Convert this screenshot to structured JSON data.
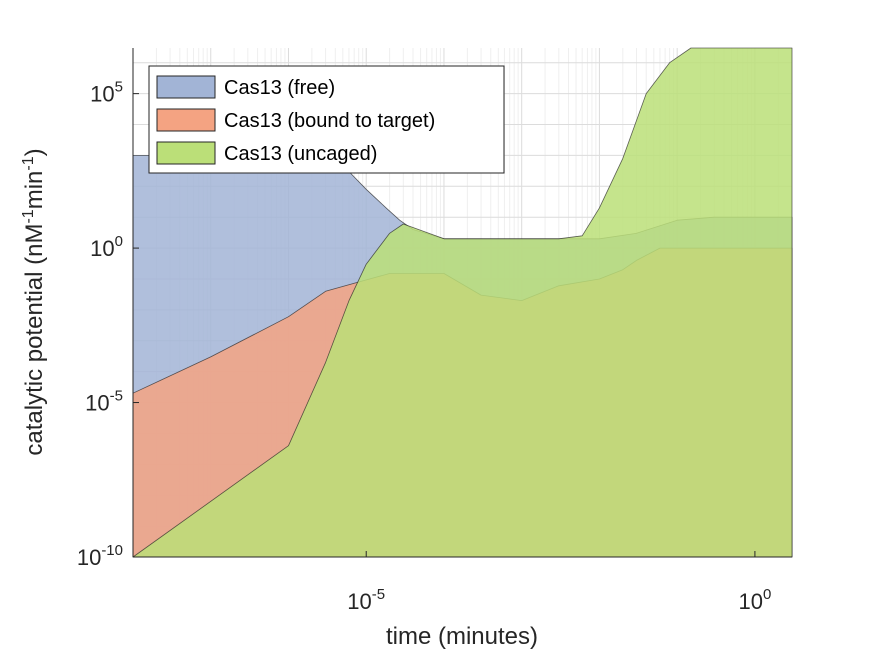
{
  "chart_data": {
    "type": "area",
    "title": "",
    "xlabel": "time (minutes)",
    "ylabel": {
      "prefix": "catalytic potential (nM",
      "sup1": "-1",
      "mid": "min",
      "sup2": "-1",
      "suffix": ")"
    },
    "xscale": "log",
    "yscale": "log",
    "xlim": [
      1e-08,
      3
    ],
    "ylim": [
      1e-10,
      3000000.0
    ],
    "xticks": [
      {
        "value": 1e-05,
        "base": "10",
        "exp": "-5"
      },
      {
        "value": 1,
        "base": "10",
        "exp": "0"
      }
    ],
    "yticks": [
      {
        "value": 1e-10,
        "base": "10",
        "exp": "-10"
      },
      {
        "value": 1e-05,
        "base": "10",
        "exp": "-5"
      },
      {
        "value": 1,
        "base": "10",
        "exp": "0"
      },
      {
        "value": 100000.0,
        "base": "10",
        "exp": "5"
      }
    ],
    "grid": true,
    "legend_position": "top-left",
    "series": [
      {
        "name": "Cas13 (free)",
        "color": "#a2b4d6",
        "x": [
          1e-08,
          3e-07,
          1e-06,
          3e-06,
          6e-06,
          1e-05,
          1.8e-05,
          2.7e-05,
          4e-05,
          0.0001,
          0.001,
          0.01,
          0.03,
          0.1,
          0.3,
          1,
          3
        ],
        "y": [
          1000,
          1000,
          1000,
          700,
          300,
          80,
          20,
          8,
          4,
          2,
          2,
          2,
          3,
          8,
          10,
          10,
          10
        ]
      },
      {
        "name": "Cas13 (bound to target)",
        "color": "#f4a382",
        "x": [
          1e-08,
          1e-07,
          1e-06,
          3e-06,
          8e-06,
          2e-05,
          0.0001,
          0.0003,
          0.001,
          0.003,
          0.01,
          0.02,
          0.03,
          0.06,
          0.3,
          1,
          3
        ],
        "y": [
          2e-05,
          0.0003,
          0.006,
          0.04,
          0.08,
          0.15,
          0.15,
          0.03,
          0.02,
          0.06,
          0.1,
          0.2,
          0.4,
          1,
          1,
          1,
          1
        ]
      },
      {
        "name": "Cas13 (uncaged)",
        "color": "#bbdf78",
        "x": [
          1e-08,
          1e-06,
          3e-06,
          6e-06,
          1e-05,
          2e-05,
          3e-05,
          0.0001,
          0.0003,
          0.001,
          0.003,
          0.006,
          0.01,
          0.02,
          0.04,
          0.08,
          0.15,
          0.3,
          1,
          3
        ],
        "y": [
          1e-10,
          4e-07,
          0.0002,
          0.02,
          0.3,
          3,
          6,
          2,
          2,
          2,
          2,
          2.5,
          20,
          800,
          100000.0,
          1000000.0,
          3000000.0,
          3000000.0,
          3000000.0,
          3000000.0
        ]
      }
    ]
  }
}
